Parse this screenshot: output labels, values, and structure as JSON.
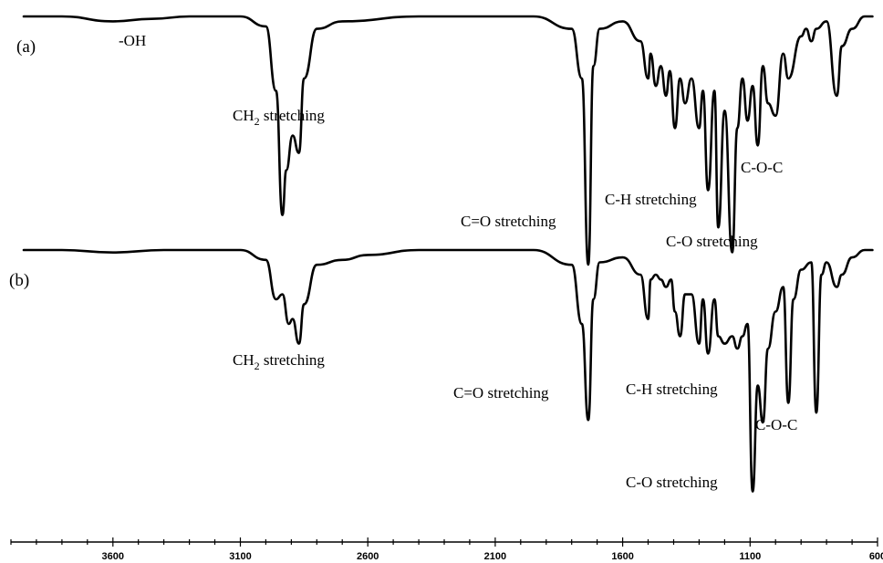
{
  "chart_data": {
    "type": "line",
    "x_axis": {
      "range": [
        4000,
        600
      ],
      "ticks": [
        3600,
        3100,
        2600,
        2100,
        1600,
        1100,
        600
      ],
      "tick_labels": [
        "3600",
        "3100",
        "2600",
        "2100",
        "1600",
        "1100",
        "600"
      ],
      "minor_tick_step": 100,
      "reversed": true
    },
    "grid": false,
    "legend": "none",
    "series": [
      {
        "panel_label": "(a)",
        "baseline": 0.0,
        "points": [
          [
            3950,
            0.0
          ],
          [
            3800,
            0.0
          ],
          [
            3600,
            0.02
          ],
          [
            3450,
            0.01
          ],
          [
            3300,
            0.0
          ],
          [
            3100,
            0.0
          ],
          [
            3000,
            0.04
          ],
          [
            2960,
            0.3
          ],
          [
            2935,
            0.8
          ],
          [
            2920,
            0.62
          ],
          [
            2895,
            0.48
          ],
          [
            2870,
            0.55
          ],
          [
            2850,
            0.25
          ],
          [
            2800,
            0.05
          ],
          [
            2700,
            0.02
          ],
          [
            2400,
            0.0
          ],
          [
            2100,
            0.0
          ],
          [
            1950,
            0.0
          ],
          [
            1800,
            0.05
          ],
          [
            1760,
            0.25
          ],
          [
            1735,
            1.0
          ],
          [
            1715,
            0.2
          ],
          [
            1690,
            0.05
          ],
          [
            1600,
            0.02
          ],
          [
            1530,
            0.1
          ],
          [
            1500,
            0.25
          ],
          [
            1490,
            0.15
          ],
          [
            1470,
            0.28
          ],
          [
            1450,
            0.2
          ],
          [
            1430,
            0.32
          ],
          [
            1415,
            0.22
          ],
          [
            1395,
            0.45
          ],
          [
            1375,
            0.25
          ],
          [
            1355,
            0.35
          ],
          [
            1330,
            0.25
          ],
          [
            1300,
            0.45
          ],
          [
            1285,
            0.3
          ],
          [
            1265,
            0.7
          ],
          [
            1240,
            0.3
          ],
          [
            1225,
            0.85
          ],
          [
            1200,
            0.38
          ],
          [
            1170,
            0.95
          ],
          [
            1150,
            0.45
          ],
          [
            1130,
            0.25
          ],
          [
            1110,
            0.42
          ],
          [
            1090,
            0.28
          ],
          [
            1070,
            0.52
          ],
          [
            1050,
            0.2
          ],
          [
            1030,
            0.35
          ],
          [
            1000,
            0.4
          ],
          [
            970,
            0.15
          ],
          [
            950,
            0.25
          ],
          [
            900,
            0.08
          ],
          [
            880,
            0.05
          ],
          [
            860,
            0.1
          ],
          [
            840,
            0.05
          ],
          [
            800,
            0.02
          ],
          [
            760,
            0.32
          ],
          [
            740,
            0.12
          ],
          [
            700,
            0.05
          ],
          [
            650,
            0.0
          ],
          [
            620,
            0.0
          ]
        ],
        "annotations": [
          {
            "text": "-OH"
          },
          {
            "text": "CH",
            "subscript": "2",
            "suffix": " stretching"
          },
          {
            "text": "C=O stretching"
          },
          {
            "text": "C-H stretching"
          },
          {
            "text": "C-O stretching"
          },
          {
            "text": "C-O-C"
          }
        ]
      },
      {
        "panel_label": "(b)",
        "baseline": 0.0,
        "points": [
          [
            3950,
            0.0
          ],
          [
            3800,
            0.0
          ],
          [
            3600,
            0.01
          ],
          [
            3400,
            0.0
          ],
          [
            3100,
            0.0
          ],
          [
            3000,
            0.04
          ],
          [
            2960,
            0.2
          ],
          [
            2935,
            0.18
          ],
          [
            2910,
            0.3
          ],
          [
            2895,
            0.28
          ],
          [
            2870,
            0.38
          ],
          [
            2850,
            0.22
          ],
          [
            2800,
            0.06
          ],
          [
            2700,
            0.04
          ],
          [
            2600,
            0.02
          ],
          [
            2400,
            0.0
          ],
          [
            2100,
            0.0
          ],
          [
            1950,
            0.0
          ],
          [
            1800,
            0.06
          ],
          [
            1760,
            0.3
          ],
          [
            1735,
            0.69
          ],
          [
            1715,
            0.2
          ],
          [
            1690,
            0.05
          ],
          [
            1600,
            0.03
          ],
          [
            1530,
            0.1
          ],
          [
            1500,
            0.28
          ],
          [
            1490,
            0.12
          ],
          [
            1470,
            0.1
          ],
          [
            1450,
            0.12
          ],
          [
            1430,
            0.15
          ],
          [
            1410,
            0.12
          ],
          [
            1395,
            0.25
          ],
          [
            1375,
            0.35
          ],
          [
            1355,
            0.18
          ],
          [
            1330,
            0.18
          ],
          [
            1300,
            0.38
          ],
          [
            1285,
            0.2
          ],
          [
            1265,
            0.42
          ],
          [
            1240,
            0.2
          ],
          [
            1225,
            0.35
          ],
          [
            1200,
            0.38
          ],
          [
            1170,
            0.35
          ],
          [
            1150,
            0.4
          ],
          [
            1130,
            0.35
          ],
          [
            1110,
            0.3
          ],
          [
            1090,
            0.98
          ],
          [
            1070,
            0.55
          ],
          [
            1050,
            0.7
          ],
          [
            1030,
            0.4
          ],
          [
            1000,
            0.25
          ],
          [
            970,
            0.15
          ],
          [
            950,
            0.62
          ],
          [
            930,
            0.2
          ],
          [
            900,
            0.08
          ],
          [
            860,
            0.05
          ],
          [
            840,
            0.66
          ],
          [
            820,
            0.1
          ],
          [
            800,
            0.05
          ],
          [
            760,
            0.15
          ],
          [
            740,
            0.1
          ],
          [
            700,
            0.03
          ],
          [
            650,
            0.0
          ],
          [
            620,
            0.0
          ]
        ],
        "annotations": [
          {
            "text": "CH",
            "subscript": "2",
            "suffix": " stretching"
          },
          {
            "text": "C=O stretching"
          },
          {
            "text": "C-H stretching"
          },
          {
            "text": "C-O-C"
          },
          {
            "text": "C-O stretching"
          }
        ]
      }
    ]
  }
}
